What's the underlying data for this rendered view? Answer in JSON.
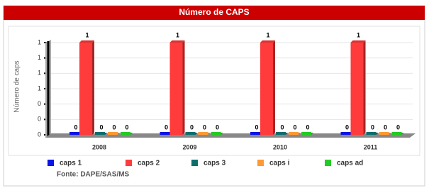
{
  "chart_data": {
    "type": "bar",
    "title": "Número de CAPS",
    "y_label": "Número de caps",
    "source": "Fonte: DAPE/SAS/MS",
    "categories": [
      "2008",
      "2009",
      "2010",
      "2011"
    ],
    "series": [
      {
        "name": "caps 1",
        "color": "#0a14e6",
        "values": [
          0,
          0,
          0,
          0
        ]
      },
      {
        "name": "caps 2",
        "color": "#ff3b3b",
        "values": [
          1,
          1,
          1,
          1
        ]
      },
      {
        "name": "caps 3",
        "color": "#0c6e6e",
        "values": [
          0,
          0,
          0,
          0
        ]
      },
      {
        "name": "caps i",
        "color": "#ff9933",
        "values": [
          0,
          0,
          0,
          0
        ]
      },
      {
        "name": "caps ad",
        "color": "#22cc22",
        "values": [
          0,
          0,
          0,
          0
        ]
      }
    ],
    "ylim": [
      0,
      1
    ],
    "yticks": [
      {
        "value": 0,
        "label": "0"
      },
      {
        "value": 0.1667,
        "label": "0"
      },
      {
        "value": 0.3333,
        "label": "0"
      },
      {
        "value": 0.5,
        "label": "1"
      },
      {
        "value": 0.6667,
        "label": "1"
      },
      {
        "value": 0.8333,
        "label": "1"
      },
      {
        "value": 1,
        "label": "1"
      }
    ],
    "grid": true,
    "legend": "bottom"
  }
}
